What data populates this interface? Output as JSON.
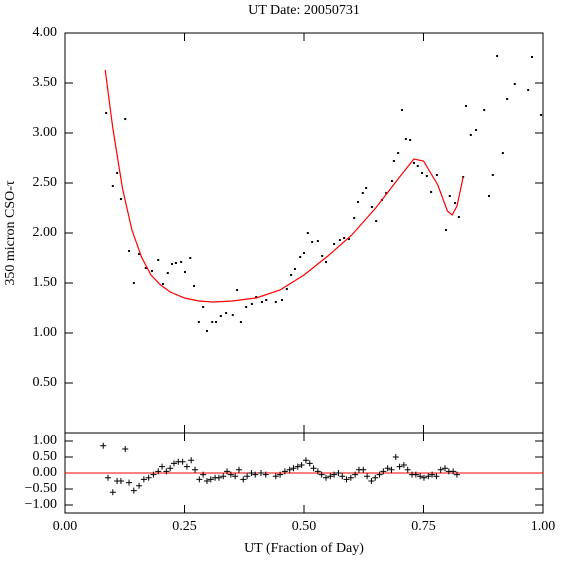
{
  "chart_data": [
    {
      "type": "scatter",
      "title": "UT Date: 20050731",
      "y_label": "350 micron CSO-τ",
      "xlim": [
        0,
        1
      ],
      "ylim": [
        0,
        4
      ],
      "xticks": [
        0,
        0.25,
        0.5,
        0.75,
        1
      ],
      "yticks": [
        {
          "value": 0.5,
          "label": "0.50"
        },
        {
          "value": 1,
          "label": "1.00"
        },
        {
          "value": 1.5,
          "label": "1.50"
        },
        {
          "value": 2,
          "label": "2.00"
        },
        {
          "value": 2.5,
          "label": "2.50"
        },
        {
          "value": 3,
          "label": "3.00"
        },
        {
          "value": 3.5,
          "label": "3.50"
        },
        {
          "value": 4,
          "label": "4.00"
        }
      ],
      "series": [
        {
          "color": "#000000",
          "marker": "dot",
          "x": [
            0.086,
            0.1,
            0.109,
            0.117,
            0.126,
            0.134,
            0.144,
            0.155,
            0.169,
            0.182,
            0.195,
            0.205,
            0.215,
            0.224,
            0.232,
            0.243,
            0.251,
            0.262,
            0.27,
            0.28,
            0.289,
            0.297,
            0.308,
            0.316,
            0.326,
            0.337,
            0.351,
            0.36,
            0.368,
            0.379,
            0.391,
            0.4,
            0.412,
            0.421,
            0.441,
            0.454,
            0.464,
            0.473,
            0.481,
            0.492,
            0.5,
            0.508,
            0.517,
            0.529,
            0.538,
            0.546,
            0.563,
            0.575,
            0.584,
            0.594,
            0.605,
            0.613,
            0.623,
            0.63,
            0.642,
            0.651,
            0.663,
            0.672,
            0.684,
            0.688,
            0.697,
            0.705,
            0.713,
            0.722,
            0.73,
            0.738,
            0.747,
            0.757,
            0.766,
            0.778,
            0.797,
            0.805,
            0.816,
            0.824,
            0.833,
            0.839,
            0.849,
            0.86,
            0.877,
            0.887,
            0.895,
            0.904,
            0.916,
            0.925,
            0.941,
            0.969,
            0.977,
            0.996
          ],
          "values": [
            3.2,
            2.47,
            2.6,
            2.34,
            3.14,
            1.82,
            1.5,
            1.79,
            1.65,
            1.62,
            1.73,
            1.49,
            1.6,
            1.69,
            1.7,
            1.71,
            1.61,
            1.75,
            1.47,
            1.11,
            1.26,
            1.02,
            1.11,
            1.11,
            1.17,
            1.2,
            1.18,
            1.43,
            1.11,
            1.26,
            1.29,
            1.36,
            1.31,
            1.33,
            1.31,
            1.33,
            1.44,
            1.58,
            1.64,
            1.76,
            1.8,
            2.0,
            1.91,
            1.92,
            1.77,
            1.71,
            1.89,
            1.93,
            1.95,
            1.94,
            2.15,
            2.31,
            2.4,
            2.45,
            2.26,
            2.12,
            2.33,
            2.4,
            2.52,
            2.72,
            2.8,
            3.23,
            2.94,
            2.93,
            2.7,
            2.67,
            2.6,
            2.57,
            2.41,
            2.58,
            2.03,
            2.37,
            2.3,
            2.16,
            2.56,
            3.27,
            2.98,
            3.03,
            3.23,
            2.37,
            2.58,
            3.77,
            2.8,
            3.34,
            3.49,
            3.43,
            3.76,
            3.18
          ]
        },
        {
          "color": "#ff0000",
          "marker": "line",
          "x": [
            0.084,
            0.1,
            0.12,
            0.14,
            0.16,
            0.18,
            0.2,
            0.22,
            0.25,
            0.28,
            0.31,
            0.35,
            0.4,
            0.45,
            0.5,
            0.55,
            0.6,
            0.65,
            0.7,
            0.73,
            0.75,
            0.78,
            0.8,
            0.81,
            0.82,
            0.833
          ],
          "values": [
            3.63,
            3.05,
            2.45,
            2.03,
            1.76,
            1.58,
            1.48,
            1.41,
            1.35,
            1.32,
            1.31,
            1.32,
            1.35,
            1.43,
            1.58,
            1.77,
            1.98,
            2.25,
            2.56,
            2.74,
            2.72,
            2.48,
            2.22,
            2.18,
            2.27,
            2.56
          ]
        }
      ]
    },
    {
      "type": "scatter",
      "x_label": "UT (Fraction of Day)",
      "xlim": [
        0,
        1
      ],
      "ylim": [
        -1.25,
        1.25
      ],
      "reference_line": 0,
      "reference_color": "#ff0000",
      "xticks": [
        {
          "value": 0,
          "label": "0.00"
        },
        {
          "value": 0.25,
          "label": "0.25"
        },
        {
          "value": 0.5,
          "label": "0.50"
        },
        {
          "value": 0.75,
          "label": "0.75"
        },
        {
          "value": 1,
          "label": "1.00"
        }
      ],
      "yticks": [
        {
          "value": -1,
          "label": "−1.00"
        },
        {
          "value": -0.5,
          "label": "−0.50"
        },
        {
          "value": 0,
          "label": "0.00"
        },
        {
          "value": 0.5,
          "label": "0.50"
        },
        {
          "value": 1,
          "label": "1.00"
        }
      ],
      "series": [
        {
          "color": "#000000",
          "marker": "plus",
          "x": [
            0.08,
            0.09,
            0.1,
            0.109,
            0.117,
            0.126,
            0.134,
            0.144,
            0.155,
            0.165,
            0.175,
            0.185,
            0.195,
            0.203,
            0.212,
            0.22,
            0.228,
            0.237,
            0.246,
            0.255,
            0.264,
            0.272,
            0.281,
            0.289,
            0.297,
            0.305,
            0.314,
            0.322,
            0.331,
            0.339,
            0.347,
            0.356,
            0.364,
            0.373,
            0.381,
            0.39,
            0.398,
            0.41,
            0.42,
            0.441,
            0.45,
            0.46,
            0.47,
            0.478,
            0.487,
            0.495,
            0.504,
            0.512,
            0.52,
            0.529,
            0.537,
            0.546,
            0.555,
            0.563,
            0.572,
            0.58,
            0.589,
            0.598,
            0.607,
            0.615,
            0.624,
            0.632,
            0.641,
            0.649,
            0.658,
            0.666,
            0.675,
            0.683,
            0.692,
            0.7,
            0.709,
            0.717,
            0.726,
            0.734,
            0.743,
            0.751,
            0.76,
            0.768,
            0.777,
            0.786,
            0.795,
            0.803,
            0.812,
            0.82
          ],
          "values": [
            0.85,
            -0.15,
            -0.6,
            -0.25,
            -0.25,
            0.75,
            -0.3,
            -0.55,
            -0.4,
            -0.2,
            -0.15,
            -0.05,
            0.05,
            0.2,
            0.05,
            0.15,
            0.3,
            0.35,
            0.35,
            0.2,
            0.4,
            0.1,
            -0.2,
            -0.05,
            -0.25,
            -0.2,
            -0.15,
            -0.15,
            -0.1,
            0.05,
            -0.05,
            -0.1,
            0.1,
            -0.2,
            -0.1,
            0.0,
            -0.05,
            0.0,
            -0.05,
            -0.1,
            -0.05,
            0.05,
            0.1,
            0.15,
            0.2,
            0.25,
            0.4,
            0.3,
            0.15,
            0.05,
            -0.05,
            -0.15,
            -0.1,
            -0.05,
            0.0,
            -0.1,
            -0.2,
            -0.15,
            -0.05,
            0.1,
            0.1,
            -0.1,
            -0.25,
            -0.15,
            -0.05,
            0.05,
            0.15,
            0.1,
            0.5,
            0.2,
            0.25,
            0.1,
            -0.05,
            -0.05,
            -0.1,
            -0.15,
            -0.1,
            -0.05,
            -0.1,
            0.1,
            0.15,
            0.05,
            0.05,
            -0.05
          ]
        }
      ]
    }
  ]
}
